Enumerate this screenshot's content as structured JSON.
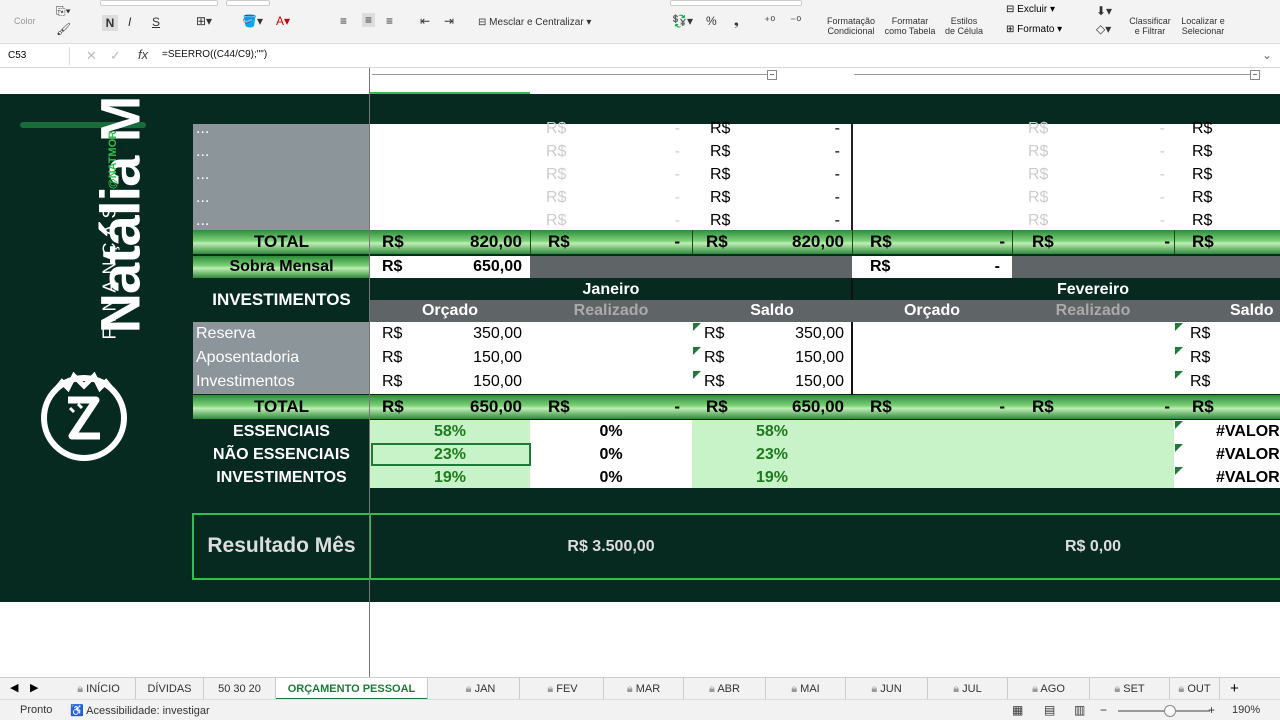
{
  "ribbon": {
    "cor_label": "Color",
    "bold": "N",
    "italic": "I",
    "underline": "S",
    "mesclar": "Mesclar e Centralizar",
    "percent": "%",
    "thousands": "❟",
    "formatacao_condicional": [
      "Formatação",
      "Condicional"
    ],
    "formatar_tabela": [
      "Formatar",
      "como Tabela"
    ],
    "estilos": [
      "Estilos",
      "de Célula"
    ],
    "excluir": "Excluir",
    "formato": "Formato",
    "classificar": [
      "Classificar",
      "e Filtrar"
    ],
    "localizar": [
      "Localizar e",
      "Selecionar"
    ]
  },
  "formula_bar": {
    "name_box": "C53",
    "fx": "fx",
    "formula": "=SEERRO((C44/C9);\"\")"
  },
  "brand": {
    "name": "Natália M",
    "sub": "FINANÇAS",
    "handle": "@NATMOR"
  },
  "rows_ellipsis": [
    "...",
    "...",
    "...",
    "...",
    "..."
  ],
  "currency": "R$",
  "dash": "-",
  "total_label": "TOTAL",
  "total1": {
    "orcado": "820,00",
    "saldo": "820,00"
  },
  "sobra": {
    "label": "Sobra Mensal",
    "value": "650,00"
  },
  "invest": {
    "title": "INVESTIMENTOS",
    "months": [
      "Janeiro",
      "Fevereiro"
    ],
    "cols": [
      "Orçado",
      "Realizado",
      "Saldo"
    ],
    "rows": [
      {
        "label": "Reserva",
        "orcado": "350,00",
        "saldo": "350,00"
      },
      {
        "label": "Aposentadoria",
        "orcado": "150,00",
        "saldo": "150,00"
      },
      {
        "label": "Investimentos",
        "orcado": "150,00",
        "saldo": "150,00"
      }
    ],
    "total": {
      "orcado": "650,00",
      "saldo": "650,00"
    }
  },
  "pct": {
    "labels": [
      "ESSENCIAIS",
      "NÃO ESSENCIAIS",
      "INVESTIMENTOS"
    ],
    "orcado": [
      "58%",
      "23%",
      "19%"
    ],
    "realizado": [
      "0%",
      "0%",
      "0%"
    ],
    "saldo": [
      "58%",
      "23%",
      "19%"
    ],
    "fev_saldo": [
      "#VALOR",
      "#VALOR",
      "#VALOR"
    ]
  },
  "resultado": {
    "label": "Resultado Mês",
    "jan": "R$ 3.500,00",
    "fev": "R$ 0,00"
  },
  "tabs": [
    "INÍCIO",
    "DÍVIDAS",
    "50 30 20",
    "ORÇAMENTO PESSOAL",
    "JAN",
    "FEV",
    "MAR",
    "ABR",
    "MAI",
    "JUN",
    "JUL",
    "AGO",
    "SET",
    "OUT"
  ],
  "status": {
    "ready": "Pronto",
    "accessibility": "Acessibilidade: investigar",
    "zoom": "190%"
  }
}
